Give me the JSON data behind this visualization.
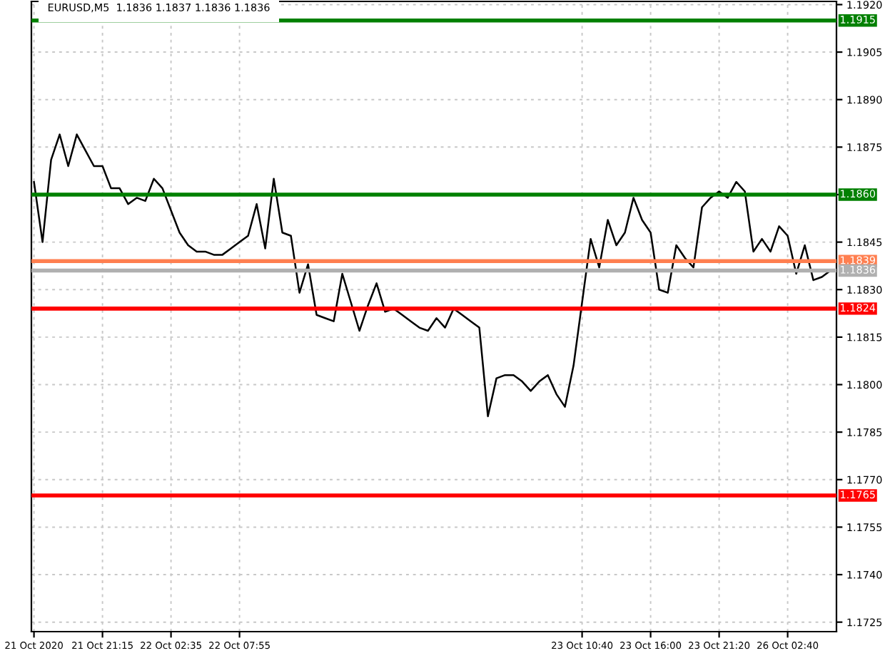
{
  "chart_data": {
    "type": "line",
    "title": "EURUSD,M5  1.1836 1.1837 1.1836 1.1836",
    "categories": [
      "21 Oct 2020",
      null,
      null,
      null,
      null,
      null,
      null,
      null,
      "21 Oct 21:15",
      null,
      null,
      null,
      null,
      null,
      null,
      null,
      "22 Oct 02:35",
      null,
      null,
      null,
      null,
      null,
      null,
      null,
      "22 Oct 07:55",
      null,
      null,
      null,
      null,
      null,
      null,
      null,
      null,
      null,
      null,
      null,
      null,
      null,
      null,
      null,
      null,
      null,
      null,
      null,
      null,
      null,
      null,
      null,
      null,
      null,
      null,
      null,
      null,
      null,
      null,
      null,
      null,
      null,
      null,
      null,
      null,
      null,
      null,
      null,
      "23 Oct 10:40",
      null,
      null,
      null,
      null,
      null,
      null,
      null,
      "23 Oct 16:00",
      null,
      null,
      null,
      null,
      null,
      null,
      null,
      "23 Oct 21:20",
      null,
      null,
      null,
      null,
      null,
      null,
      null,
      "26 Oct 02:40",
      null,
      null,
      null,
      null,
      null
    ],
    "series": [
      {
        "color": "#000000",
        "values": [
          1.1864,
          1.1845,
          1.1871,
          1.1879,
          1.1869,
          1.1879,
          1.1874,
          1.1869,
          1.1869,
          1.1862,
          1.1862,
          1.1857,
          1.1859,
          1.1858,
          1.1865,
          1.1862,
          1.1855,
          1.1848,
          1.1844,
          1.1842,
          1.1842,
          1.1841,
          1.1841,
          1.1843,
          1.1845,
          1.1847,
          1.1857,
          1.1843,
          1.1865,
          1.1848,
          1.1847,
          1.1829,
          1.1838,
          1.1822,
          1.1821,
          1.182,
          1.1835,
          1.1826,
          1.1817,
          1.1825,
          1.1832,
          1.1823,
          1.1824,
          1.1822,
          1.182,
          1.1818,
          1.1817,
          1.1821,
          1.1818,
          1.1824,
          1.1822,
          1.182,
          1.1818,
          1.179,
          1.1802,
          1.1803,
          1.1803,
          1.1801,
          1.1798,
          1.1801,
          1.1803,
          1.1797,
          1.1793,
          1.1806,
          1.1826,
          1.1846,
          1.1837,
          1.1852,
          1.1844,
          1.1848,
          1.1859,
          1.1852,
          1.1848,
          1.183,
          1.1829,
          1.1844,
          1.184,
          1.1837,
          1.1856,
          1.1859,
          1.1861,
          1.1859,
          1.1864,
          1.1861,
          1.1842,
          1.1846,
          1.1842,
          1.185,
          1.1847,
          1.1835,
          1.1844,
          1.1833,
          1.1834,
          1.1836
        ]
      }
    ],
    "ylim": [
      1.1722,
      1.1921
    ],
    "yticks": [
      1.1725,
      {
        "value": 1.174,
        "label": "1.1740"
      },
      1.1755,
      {
        "value": 1.177,
        "label": "1.1770"
      },
      1.1785,
      {
        "value": 1.18,
        "label": "1.1800"
      },
      1.1815,
      {
        "value": 1.183,
        "label": "1.1830"
      },
      1.1845,
      {
        "value": 1.186,
        "label": null
      },
      1.1875,
      {
        "value": 1.189,
        "label": "1.1890"
      },
      1.1905,
      {
        "value": 1.192,
        "label": "1.1920"
      }
    ],
    "grid": true,
    "ref_lines": [
      {
        "axis": "y",
        "value": 1.1915,
        "label": "1.1915",
        "color": "#008000"
      },
      {
        "axis": "y",
        "value": 1.186,
        "label": "1.1860",
        "color": "#008000"
      },
      {
        "axis": "y",
        "value": 1.1839,
        "label": "1.1839",
        "color": "#ff7f50"
      },
      {
        "axis": "y",
        "value": 1.1836,
        "label": "1.1836",
        "color": "#b0b0b0"
      },
      {
        "axis": "y",
        "value": 1.1824,
        "label": "1.1824",
        "color": "#ff0000"
      },
      {
        "axis": "y",
        "value": 1.1765,
        "label": "1.1765",
        "color": "#ff0000"
      }
    ]
  }
}
